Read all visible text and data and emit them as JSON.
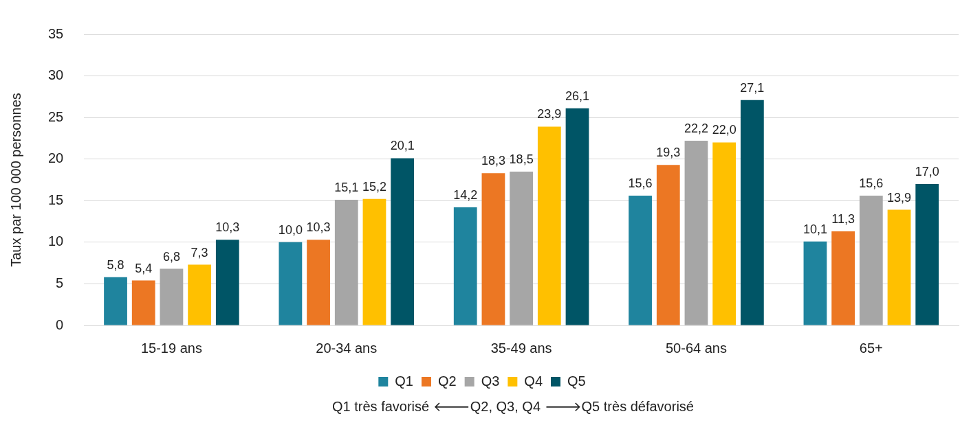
{
  "chart_data": {
    "type": "bar",
    "ylabel": "Taux par 100 000 personnes",
    "xlabel": "Q1 très favorisé 🡐Q2, Q3, Q4 🡒Q5 très défavorisé",
    "categories": [
      "15-19 ans",
      "20-34 ans",
      "35-49 ans",
      "50-64 ans",
      "65+"
    ],
    "series": [
      {
        "name": "Q1",
        "color": "#1f849e",
        "values": [
          5.8,
          10.0,
          14.2,
          15.6,
          10.1
        ],
        "value_labels": [
          "5,8",
          "10,0",
          "14,2",
          "15,6",
          "10,1"
        ]
      },
      {
        "name": "Q2",
        "color": "#ec7723",
        "values": [
          5.4,
          10.3,
          18.3,
          19.3,
          11.3
        ],
        "value_labels": [
          "5,4",
          "10,3",
          "18,3",
          "19,3",
          "11,3"
        ]
      },
      {
        "name": "Q3",
        "color": "#a6a6a6",
        "values": [
          6.8,
          15.1,
          18.5,
          22.2,
          15.6
        ],
        "value_labels": [
          "6,8",
          "15,1",
          "18,5",
          "22,2",
          "15,6"
        ]
      },
      {
        "name": "Q4",
        "color": "#ffc000",
        "values": [
          7.3,
          15.2,
          23.9,
          22.0,
          13.9
        ],
        "value_labels": [
          "7,3",
          "15,2",
          "23,9",
          "22,0",
          "13,9"
        ]
      },
      {
        "name": "Q5",
        "color": "#005566",
        "values": [
          10.3,
          20.1,
          26.1,
          27.1,
          17.0
        ],
        "value_labels": [
          "10,3",
          "20,1",
          "26,1",
          "27,1",
          "17,0"
        ]
      }
    ],
    "ylim": [
      0,
      35
    ],
    "yticks": [
      0,
      5,
      10,
      15,
      20,
      25,
      30,
      35
    ],
    "grid": "y",
    "legend": "bottom"
  }
}
